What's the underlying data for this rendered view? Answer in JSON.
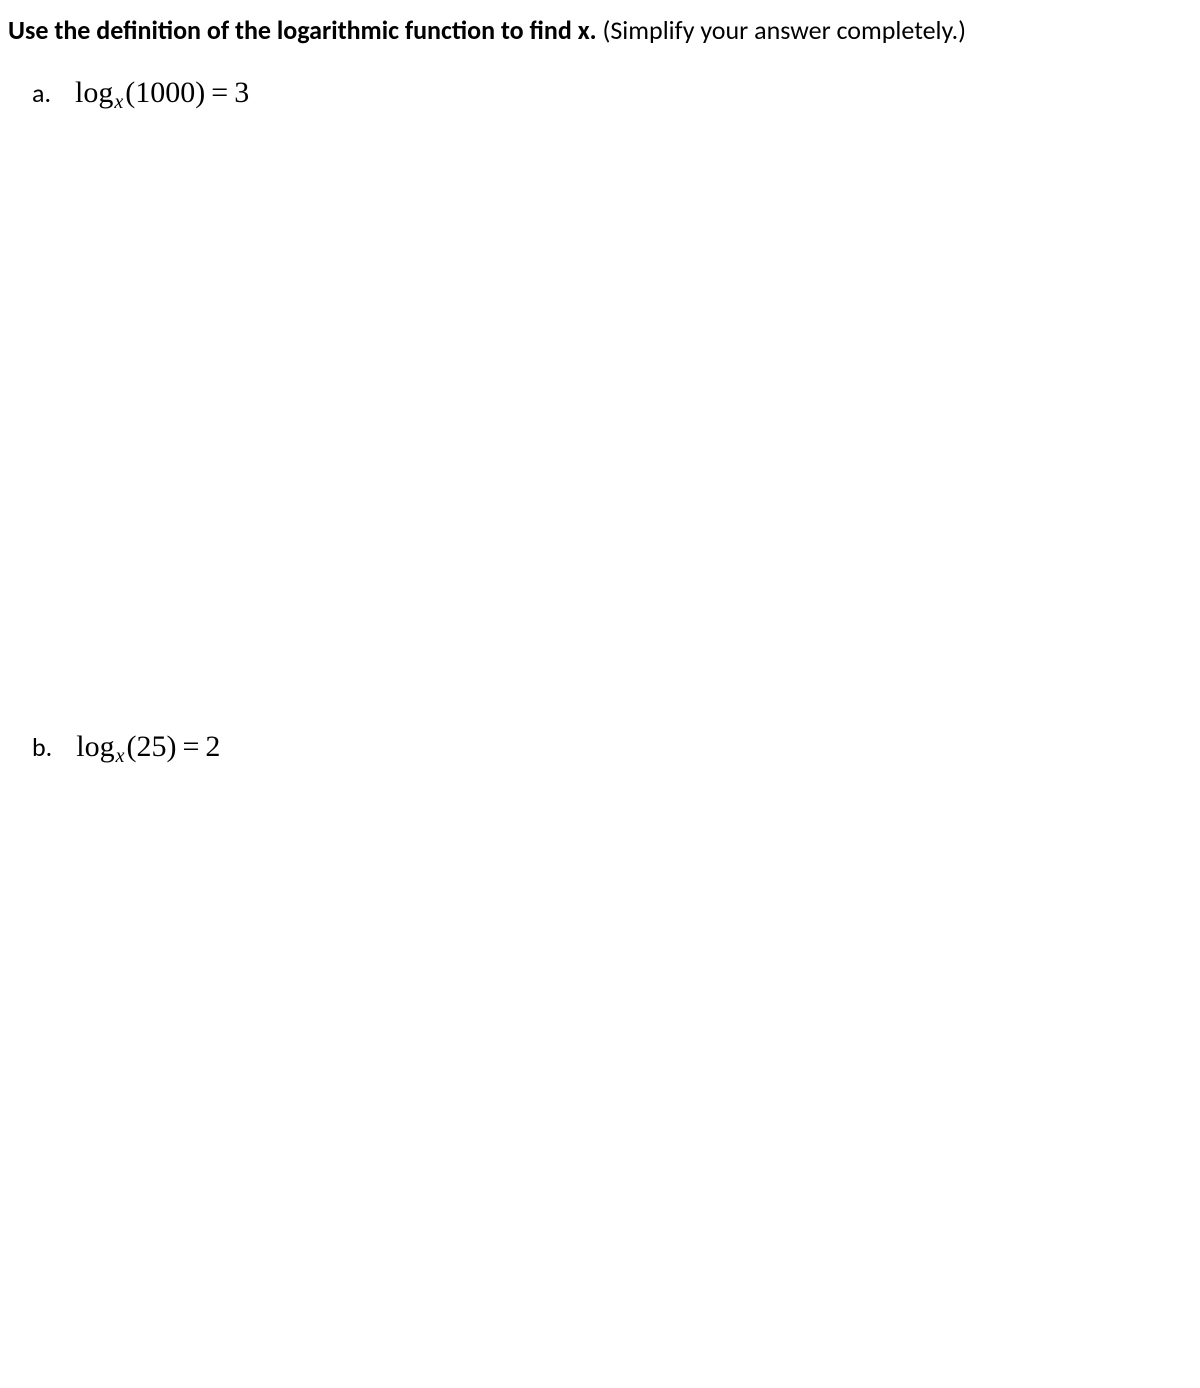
{
  "heading": {
    "bold": "Use the definition of the logarithmic function to find x.",
    "normal": " (Simplify your answer completely.)"
  },
  "problems": {
    "a": {
      "label": "a.",
      "log": "log",
      "sub": "x",
      "open": "(",
      "arg": "1000",
      "close": ")",
      "eq": "=",
      "rhs": "3"
    },
    "b": {
      "label": "b.",
      "log": "log",
      "sub": "x",
      "open": "(",
      "arg": "25",
      "close": ")",
      "eq": "=",
      "rhs": "2"
    }
  },
  "colors": {
    "background": "#ffffff",
    "text": "#000000"
  },
  "typography": {
    "heading_fontsize": 26,
    "equation_fontsize": 30,
    "subscript_fontsize": 20,
    "heading_font": "Calibri",
    "equation_font": "Times New Roman"
  }
}
